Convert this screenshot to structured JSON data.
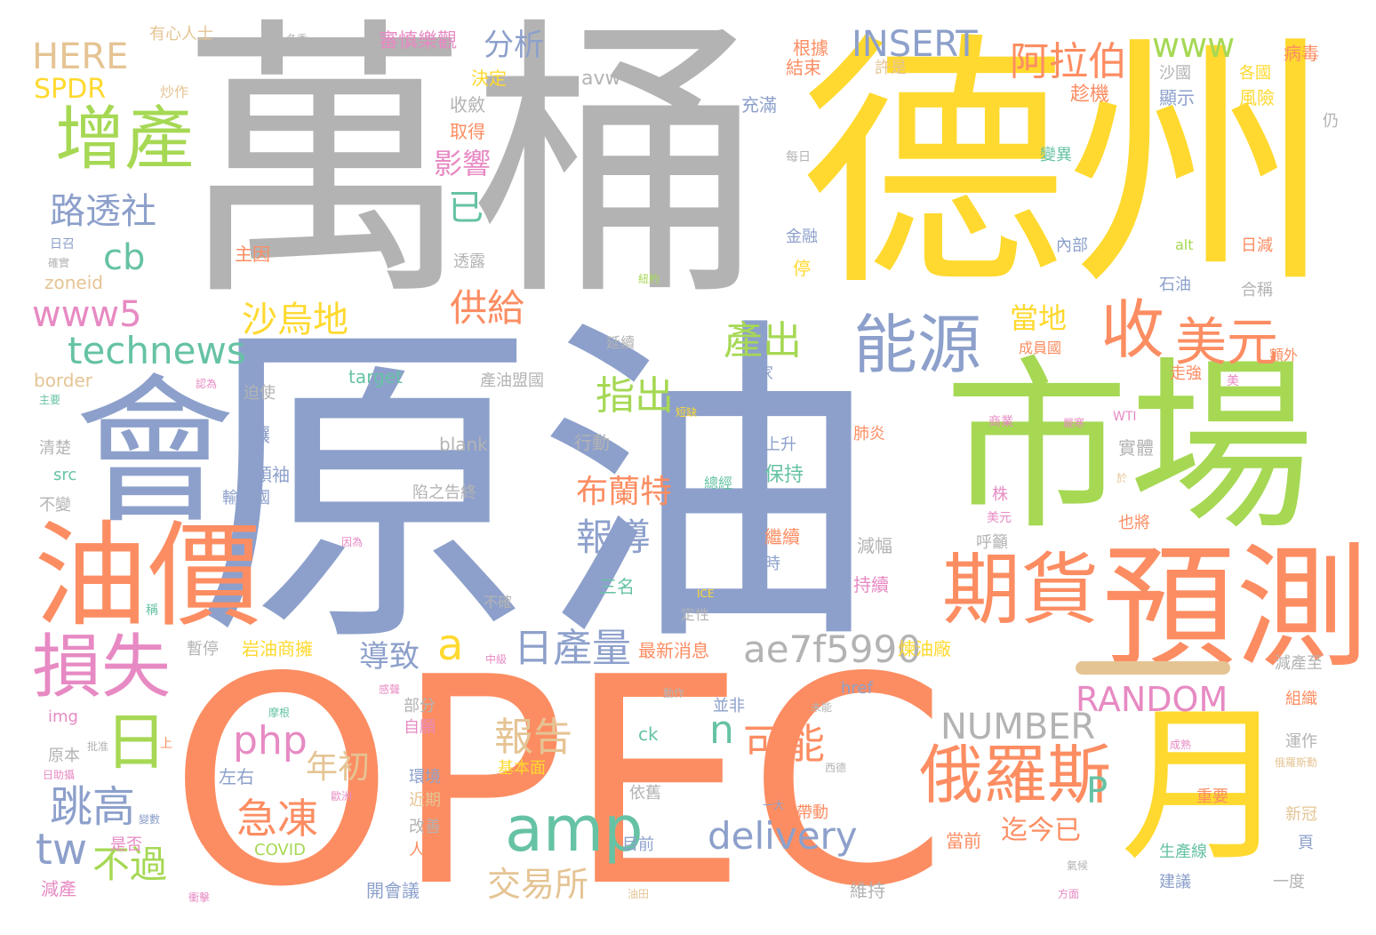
{
  "big": {
    "wan_tong": "萬桶",
    "de_zhou": "德州",
    "yuan_you": "原油",
    "opec": "OPEC",
    "hui": "會",
    "shi_chang": "市場",
    "you_jia": "油價",
    "yu_ce": "預測",
    "yue": "月"
  },
  "medium": {
    "zeng_chan": "增產",
    "sun_shi": "損失",
    "ri": "日",
    "neng_yuan": "能源",
    "shou": "收",
    "mei_yuan": "美元",
    "qi_huo": "期貨",
    "e_luo_si": "俄羅斯",
    "amp": "amp",
    "php": "php",
    "ji_dong": "急凍",
    "tiao_gao": "跳高",
    "ri_chan_liang": "日產量",
    "bao_gao": "報告",
    "ke_neng": "可能",
    "technews": "technews",
    "www5": "www5",
    "www": "www",
    "insert": "INSERT",
    "a_la_bo": "阿拉伯",
    "lu_tou_she": "路透社",
    "cb": "cb",
    "sha_wu_di": "沙烏地",
    "gong_gei": "供給",
    "chan_chu": "產出",
    "zhi_chu": "指出",
    "ae7f": "ae7f5990",
    "random": "RANDOM",
    "number": "NUMBER",
    "delivery": "delivery",
    "bao_dao": "報導",
    "bu_lan_te": "布蘭特",
    "jiao_yi_suo": "交易所",
    "bu_guo": "不過",
    "tw": "tw",
    "qi_jin_yi": "迄今已",
    "nian_chu": "年初",
    "dao_zhi": "導致",
    "a": "a",
    "n": "n",
    "p": "P",
    "ying_xiang": "影響",
    "yi": "已",
    "fen_xi": "分析",
    "here": "HERE",
    "spdr": "SPDR",
    "dang_di": "當地"
  },
  "small": [
    "有心人士",
    "冬季",
    "審慎樂觀",
    "根據",
    "病毒",
    "決定",
    "炒作",
    "avw",
    "結束",
    "許是",
    "沙國",
    "各國",
    "收斂",
    "充滿",
    "趁機",
    "顯示",
    "風險",
    "取得",
    "每日",
    "仍",
    "變異",
    "主因",
    "金融",
    "內部",
    "日減",
    "日召",
    "確實",
    "zoneid",
    "透露",
    "停",
    "石油",
    "合稱",
    "紐約",
    "alt",
    "延續",
    "成員國",
    "額外",
    "border",
    "target",
    "產油盟國",
    "專家",
    "走強",
    "認為",
    "迫使",
    "美",
    "主要",
    "短缺",
    "WTI",
    "清楚",
    "blank",
    "肺炎",
    "上升",
    "商業",
    "嚴寒",
    "實體",
    "讓",
    "行動",
    "保持",
    "src",
    "領袖",
    "陷之告終",
    "總經",
    "株",
    "於",
    "不變",
    "輸出國",
    "美元",
    "繼續",
    "呼籲",
    "也將",
    "因為",
    "減幅",
    "時",
    "稱",
    "三名",
    "ICE",
    "持續",
    "不確",
    "定性",
    "暫停",
    "岩油商擁",
    "最新消息",
    "煉油廠",
    "中級",
    "減產至",
    "感聲",
    "動作",
    "組織",
    "img",
    "部分",
    "自願",
    "並非",
    "未能",
    "運作",
    "摩根",
    "原本",
    "批准",
    "西德",
    "成熟",
    "日助攝",
    "左右",
    "歐洲",
    "俄羅斯勳",
    "環境",
    "基本面",
    "依舊",
    "重要",
    "變數",
    "是否",
    "近期",
    "一大",
    "帶動",
    "新冠",
    "COVID",
    "改善",
    "人士",
    "目前",
    "當前",
    "頁",
    "減產",
    "開會議",
    "維持",
    "氣候",
    "生產線",
    "建議",
    "一度",
    "衝擊",
    "油田",
    "方面",
    "ck",
    "href",
    "上"
  ]
}
